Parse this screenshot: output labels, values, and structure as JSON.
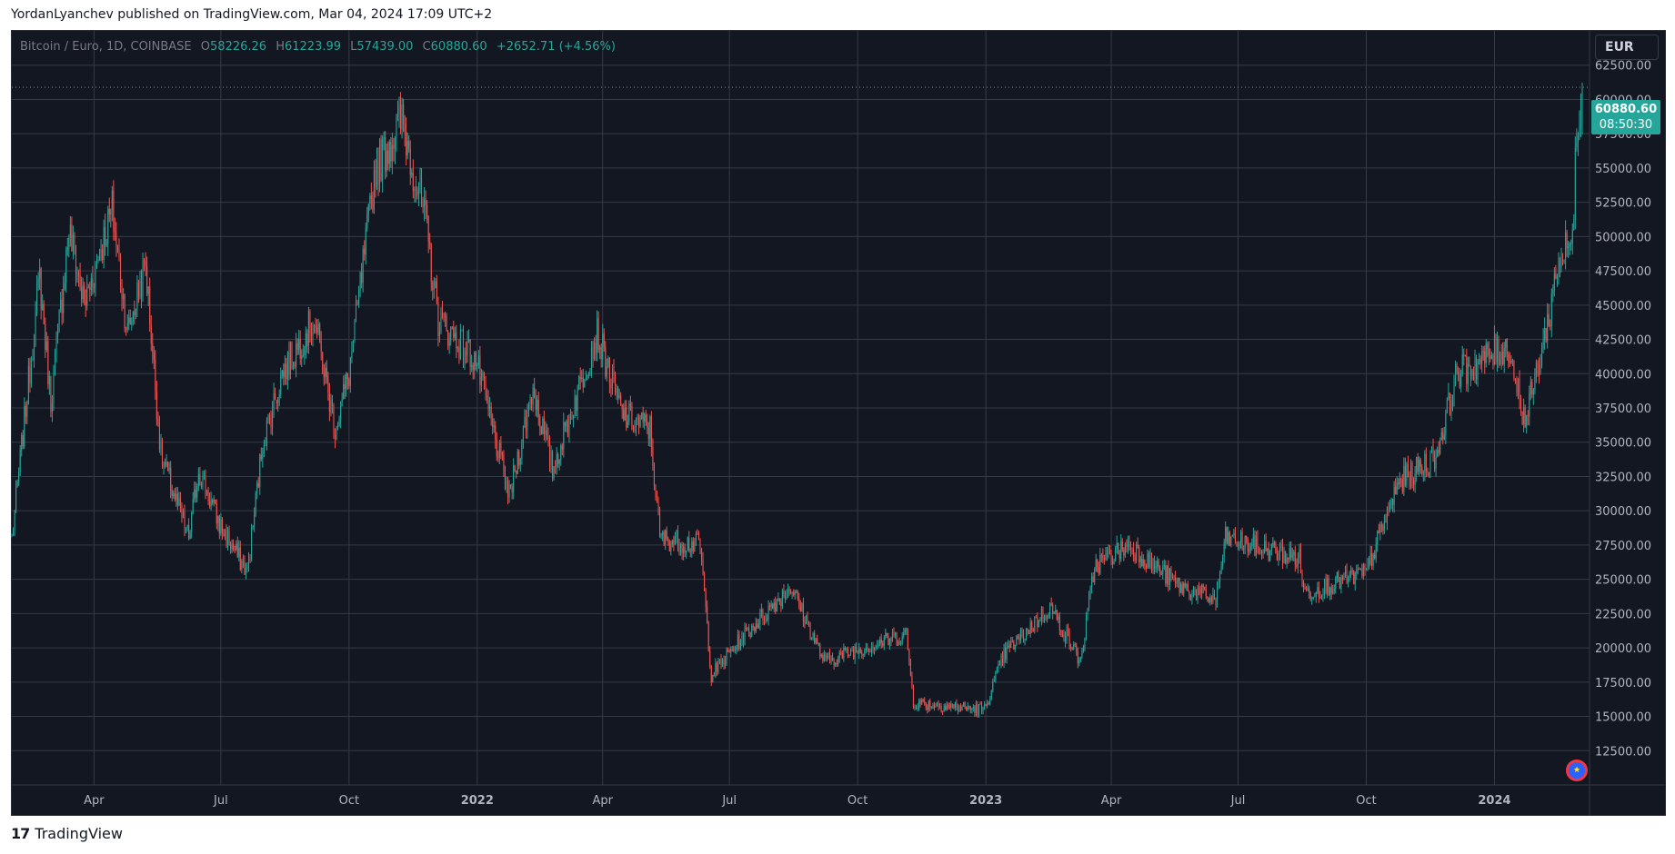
{
  "header": {
    "text": "YordanLyanchev published on TradingView.com, Mar 04, 2024 17:09 UTC+2"
  },
  "legend": {
    "symbol": "Bitcoin / Euro, 1D, COINBASE",
    "o_key": "O",
    "o_val": "58226.26",
    "h_key": "H",
    "h_val": "61223.99",
    "l_key": "L",
    "l_val": "57439.00",
    "c_key": "C",
    "c_val": "60880.60",
    "change": "+2652.71 (+4.56%)"
  },
  "currency": "EUR",
  "price_tag": {
    "price": "60880.60",
    "countdown": "08:50:30"
  },
  "footer": {
    "logo_icon": "tradingview-logo-icon",
    "logo_mark": "17",
    "brand": "TradingView"
  },
  "colors": {
    "up": "#26a69a",
    "down": "#ef5350",
    "background": "#131722",
    "grid": "#363a45",
    "axis_text": "#b2b5be"
  },
  "chart_data": {
    "type": "candlestick",
    "symbol": "BTCEUR",
    "timeframe": "1D",
    "exchange": "COINBASE",
    "x_range": [
      "2021-02-01",
      "2024-03-04"
    ],
    "ylim": [
      10000,
      65000
    ],
    "y_ticks": [
      12500,
      15000,
      17500,
      20000,
      22500,
      25000,
      27500,
      30000,
      32500,
      35000,
      37500,
      40000,
      42500,
      45000,
      47500,
      50000,
      52500,
      55000,
      57500,
      60000,
      62500
    ],
    "x_ticks": [
      {
        "date": "2021-04-01",
        "label": "Apr",
        "bold": false
      },
      {
        "date": "2021-07-01",
        "label": "Jul",
        "bold": false
      },
      {
        "date": "2021-10-01",
        "label": "Oct",
        "bold": false
      },
      {
        "date": "2022-01-01",
        "label": "2022",
        "bold": true
      },
      {
        "date": "2022-04-01",
        "label": "Apr",
        "bold": false
      },
      {
        "date": "2022-07-01",
        "label": "Jul",
        "bold": false
      },
      {
        "date": "2022-10-01",
        "label": "Oct",
        "bold": false
      },
      {
        "date": "2023-01-01",
        "label": "2023",
        "bold": true
      },
      {
        "date": "2023-04-01",
        "label": "Apr",
        "bold": false
      },
      {
        "date": "2023-07-01",
        "label": "Jul",
        "bold": false
      },
      {
        "date": "2023-10-01",
        "label": "Oct",
        "bold": false
      },
      {
        "date": "2024-01-01",
        "label": "2024",
        "bold": true
      }
    ],
    "last_price": 60880.6,
    "last_candle": {
      "date": "2024-03-04",
      "open": 58226.26,
      "high": 61223.99,
      "low": 57439.0,
      "close": 60880.6
    },
    "price_path": [
      {
        "date": "2021-02-01",
        "close": 28000
      },
      {
        "date": "2021-02-21",
        "close": 47000
      },
      {
        "date": "2021-03-01",
        "close": 38000
      },
      {
        "date": "2021-03-14",
        "close": 50500
      },
      {
        "date": "2021-03-25",
        "close": 45000
      },
      {
        "date": "2021-04-14",
        "close": 52000
      },
      {
        "date": "2021-04-25",
        "close": 43000
      },
      {
        "date": "2021-05-08",
        "close": 48000
      },
      {
        "date": "2021-05-19",
        "close": 34000
      },
      {
        "date": "2021-06-08",
        "close": 28000
      },
      {
        "date": "2021-06-15",
        "close": 33000
      },
      {
        "date": "2021-06-30",
        "close": 29000
      },
      {
        "date": "2021-07-20",
        "close": 25500
      },
      {
        "date": "2021-07-31",
        "close": 35000
      },
      {
        "date": "2021-08-14",
        "close": 40000
      },
      {
        "date": "2021-09-06",
        "close": 44000
      },
      {
        "date": "2021-09-21",
        "close": 36000
      },
      {
        "date": "2021-10-01",
        "close": 40000
      },
      {
        "date": "2021-10-20",
        "close": 55000
      },
      {
        "date": "2021-11-08",
        "close": 58500
      },
      {
        "date": "2021-11-25",
        "close": 51000
      },
      {
        "date": "2021-12-04",
        "close": 44000
      },
      {
        "date": "2021-12-31",
        "close": 41000
      },
      {
        "date": "2022-01-24",
        "close": 31000
      },
      {
        "date": "2022-02-10",
        "close": 39000
      },
      {
        "date": "2022-02-24",
        "close": 33000
      },
      {
        "date": "2022-03-28",
        "close": 43000
      },
      {
        "date": "2022-04-15",
        "close": 37000
      },
      {
        "date": "2022-05-05",
        "close": 36000
      },
      {
        "date": "2022-05-12",
        "close": 28000
      },
      {
        "date": "2022-06-10",
        "close": 27500
      },
      {
        "date": "2022-06-18",
        "close": 18000
      },
      {
        "date": "2022-07-08",
        "close": 20500
      },
      {
        "date": "2022-08-14",
        "close": 24500
      },
      {
        "date": "2022-09-07",
        "close": 19000
      },
      {
        "date": "2022-10-05",
        "close": 20000
      },
      {
        "date": "2022-11-05",
        "close": 21000
      },
      {
        "date": "2022-11-10",
        "close": 16000
      },
      {
        "date": "2022-12-31",
        "close": 15500
      },
      {
        "date": "2023-01-14",
        "close": 19500
      },
      {
        "date": "2023-02-16",
        "close": 23000
      },
      {
        "date": "2023-03-10",
        "close": 19000
      },
      {
        "date": "2023-03-20",
        "close": 26000
      },
      {
        "date": "2023-04-14",
        "close": 27500
      },
      {
        "date": "2023-05-20",
        "close": 24500
      },
      {
        "date": "2023-06-15",
        "close": 23500
      },
      {
        "date": "2023-06-22",
        "close": 28000
      },
      {
        "date": "2023-08-14",
        "close": 26500
      },
      {
        "date": "2023-08-18",
        "close": 24000
      },
      {
        "date": "2023-10-01",
        "close": 25500
      },
      {
        "date": "2023-10-24",
        "close": 32000
      },
      {
        "date": "2023-11-20",
        "close": 34000
      },
      {
        "date": "2023-12-05",
        "close": 40000
      },
      {
        "date": "2024-01-11",
        "close": 42000
      },
      {
        "date": "2024-01-23",
        "close": 36500
      },
      {
        "date": "2024-02-09",
        "close": 44000
      },
      {
        "date": "2024-02-15",
        "close": 48000
      },
      {
        "date": "2024-02-27",
        "close": 50000
      },
      {
        "date": "2024-02-28",
        "close": 57500
      },
      {
        "date": "2024-03-04",
        "close": 60880.6
      }
    ]
  }
}
